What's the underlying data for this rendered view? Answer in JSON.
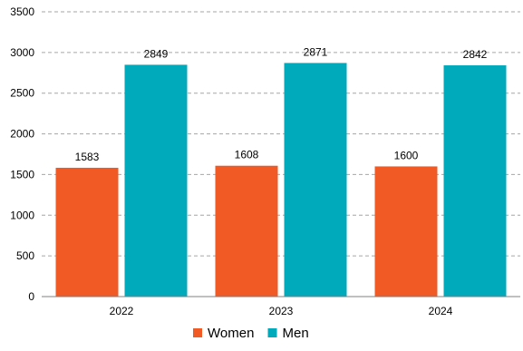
{
  "chart_data": {
    "type": "bar",
    "categories": [
      "2022",
      "2023",
      "2024"
    ],
    "series": [
      {
        "name": "Women",
        "values": [
          1583,
          1608,
          1600
        ],
        "color": "#f15a24"
      },
      {
        "name": "Men",
        "values": [
          2849,
          2871,
          2842
        ],
        "color": "#00aabb"
      }
    ],
    "ylim": [
      0,
      3500
    ],
    "yticks": [
      0,
      500,
      1000,
      1500,
      2000,
      2500,
      3000,
      3500
    ],
    "grid": true,
    "legend": "bottom-center",
    "title": "",
    "xlabel": "",
    "ylabel": ""
  }
}
